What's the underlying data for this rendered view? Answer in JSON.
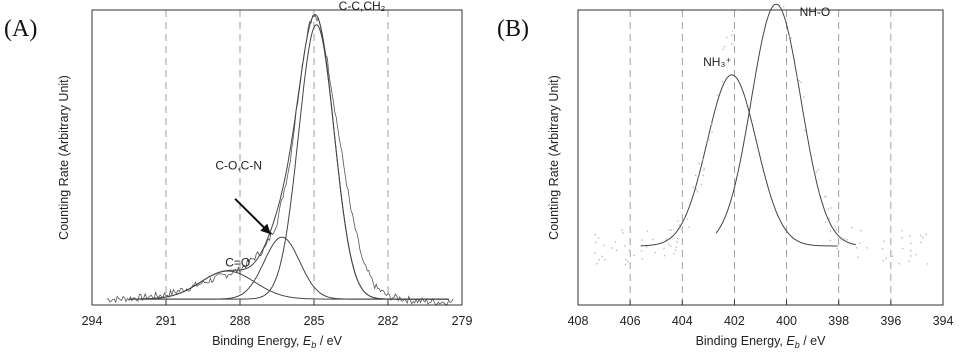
{
  "chart_data": [
    {
      "panel": "(A)",
      "type": "line",
      "xlabel": "Binding Energy, E_b / eV",
      "ylabel": "Counting Rate (Arbitrary Unit)",
      "xlim": [
        294,
        279
      ],
      "x_reversed": true,
      "xticks": [
        294,
        291,
        288,
        285,
        282,
        279
      ],
      "ylim": [
        0,
        1
      ],
      "grid": true,
      "series": [
        {
          "type": "raw",
          "points": [
            [
              293.0,
              0.02
            ],
            [
              292.0,
              0.025
            ],
            [
              291.0,
              0.035
            ],
            [
              290.0,
              0.06
            ],
            [
              289.0,
              0.09
            ],
            [
              288.0,
              0.12
            ],
            [
              287.0,
              0.19
            ],
            [
              286.5,
              0.28
            ],
            [
              286.0,
              0.47
            ],
            [
              285.5,
              0.8
            ],
            [
              285.2,
              0.96
            ],
            [
              285.0,
              0.98
            ],
            [
              284.8,
              0.96
            ],
            [
              284.5,
              0.85
            ],
            [
              284.0,
              0.58
            ],
            [
              283.5,
              0.32
            ],
            [
              283.0,
              0.14
            ],
            [
              282.5,
              0.06
            ],
            [
              282.0,
              0.03
            ],
            [
              281.0,
              0.015
            ],
            [
              280.0,
              0.01
            ],
            [
              279.3,
              0.01
            ]
          ]
        },
        {
          "type": "component",
          "center": 288.5,
          "height": 0.095,
          "sigma": 1.1,
          "baseline": 0.02
        },
        {
          "type": "component",
          "center": 286.3,
          "height": 0.21,
          "sigma": 0.72,
          "baseline": 0.02
        },
        {
          "type": "component",
          "center": 284.9,
          "height": 0.93,
          "sigma": 0.72,
          "baseline": 0.02
        },
        {
          "type": "envelope",
          "baseline": 0.02
        }
      ],
      "annotations": [
        {
          "text": "C-C,CH₂",
          "x": 284.0,
          "y": 1.0
        },
        {
          "text": "C-O,C-N",
          "x": 289.0,
          "y": 0.46
        },
        {
          "text": "C=O",
          "x": 288.6,
          "y": 0.13
        }
      ],
      "arrow": {
        "from": [
          288.2,
          0.36
        ],
        "to": [
          286.75,
          0.24
        ]
      }
    },
    {
      "panel": "(B)",
      "type": "line",
      "xlabel": "Binding Energy, E_b / eV",
      "ylabel": "Counting Rate (Arbitrary Unit)",
      "xlim": [
        408,
        394
      ],
      "x_reversed": true,
      "xticks": [
        408,
        406,
        404,
        402,
        400,
        398,
        396,
        394
      ],
      "ylim": [
        0,
        1
      ],
      "grid": true,
      "series": [
        {
          "type": "component",
          "center": 402.1,
          "height": 0.58,
          "sigma": 0.95,
          "baseline": 0.2,
          "range": [
            405.6,
            398.0
          ]
        },
        {
          "type": "component",
          "center": 400.4,
          "height": 0.82,
          "sigma": 0.95,
          "baseline": 0.2,
          "range": [
            402.7,
            397.3
          ]
        }
      ],
      "annotations": [
        {
          "text": "NH₃⁺",
          "x": 403.2,
          "y": 0.81
        },
        {
          "text": "NH-O",
          "x": 399.5,
          "y": 0.98
        }
      ]
    }
  ]
}
